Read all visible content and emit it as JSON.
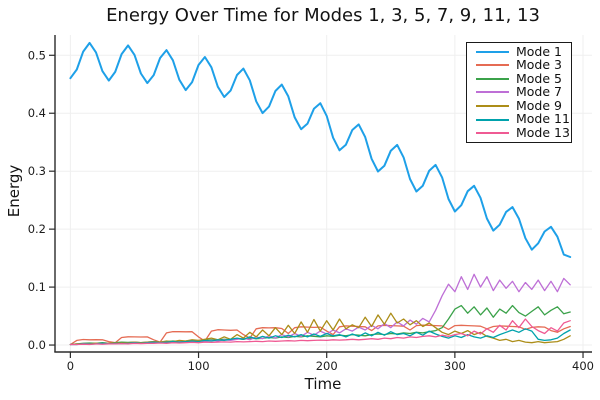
{
  "chart_data": {
    "type": "line",
    "title": "Energy Over Time for Modes 1, 3, 5, 7, 9, 11, 13",
    "xlabel": "Time",
    "ylabel": "Energy",
    "xlim": [
      -12,
      407
    ],
    "ylim": [
      -0.012,
      0.535
    ],
    "x_ticks": [
      0,
      100,
      200,
      300,
      400
    ],
    "x_tick_labels": [
      "0",
      "100",
      "200",
      "300",
      "400"
    ],
    "y_ticks": [
      0.0,
      0.1,
      0.2,
      0.3,
      0.4,
      0.5
    ],
    "y_tick_labels": [
      "0.0",
      "0.1",
      "0.2",
      "0.3",
      "0.4",
      "0.5"
    ],
    "grid": true,
    "legend_position": "top-right",
    "axis_color": "#2b2b2b",
    "grid_color": "#efefef",
    "x": [
      0,
      5,
      10,
      15,
      20,
      25,
      30,
      35,
      40,
      45,
      50,
      55,
      60,
      65,
      70,
      75,
      80,
      85,
      90,
      95,
      100,
      105,
      110,
      115,
      120,
      125,
      130,
      135,
      140,
      145,
      150,
      155,
      160,
      165,
      170,
      175,
      180,
      185,
      190,
      195,
      200,
      205,
      210,
      215,
      220,
      225,
      230,
      235,
      240,
      245,
      250,
      255,
      260,
      265,
      270,
      275,
      280,
      285,
      290,
      295,
      300,
      305,
      310,
      315,
      320,
      325,
      330,
      335,
      340,
      345,
      350,
      355,
      360,
      365,
      370,
      375,
      380,
      385,
      390
    ],
    "series": [
      {
        "name": "Mode 1",
        "color": "#1EA0E8",
        "width": 2,
        "values": [
          0.4605,
          0.4755,
          0.5063,
          0.5214,
          0.5049,
          0.4727,
          0.4563,
          0.4713,
          0.5021,
          0.5171,
          0.5007,
          0.4685,
          0.452,
          0.4658,
          0.4953,
          0.509,
          0.4913,
          0.4578,
          0.44,
          0.4538,
          0.4833,
          0.497,
          0.4793,
          0.4458,
          0.428,
          0.4391,
          0.466,
          0.4771,
          0.4568,
          0.4206,
          0.4003,
          0.4114,
          0.4383,
          0.4494,
          0.429,
          0.3929,
          0.3725,
          0.3822,
          0.4076,
          0.4173,
          0.3954,
          0.3578,
          0.336,
          0.3457,
          0.3711,
          0.3808,
          0.3589,
          0.3213,
          0.2995,
          0.3095,
          0.3353,
          0.3453,
          0.3238,
          0.2865,
          0.265,
          0.275,
          0.3008,
          0.3108,
          0.2893,
          0.252,
          0.2305,
          0.2413,
          0.2655,
          0.2748,
          0.254,
          0.2183,
          0.1975,
          0.2077,
          0.2298,
          0.238,
          0.2182,
          0.1843,
          0.1645,
          0.1755,
          0.196,
          0.204,
          0.187,
          0.156,
          0.152
        ]
      },
      {
        "name": "Mode 3",
        "color": "#E56B53",
        "width": 1.3,
        "values": [
          0.001,
          0.008,
          0.0095,
          0.009,
          0.0092,
          0.009,
          0.006,
          0.004,
          0.013,
          0.0142,
          0.014,
          0.0138,
          0.014,
          0.009,
          0.005,
          0.021,
          0.0232,
          0.023,
          0.0228,
          0.023,
          0.014,
          0.007,
          0.024,
          0.0265,
          0.026,
          0.0255,
          0.026,
          0.018,
          0.012,
          0.028,
          0.03,
          0.0295,
          0.03,
          0.0285,
          0.02,
          0.03,
          0.0315,
          0.031,
          0.0305,
          0.031,
          0.024,
          0.018,
          0.0315,
          0.033,
          0.0325,
          0.032,
          0.0315,
          0.025,
          0.033,
          0.034,
          0.0335,
          0.033,
          0.0325,
          0.026,
          0.0335,
          0.0345,
          0.034,
          0.0335,
          0.033,
          0.027,
          0.0335,
          0.034,
          0.0335,
          0.033,
          0.0325,
          0.028,
          0.032,
          0.033,
          0.0325,
          0.032,
          0.0315,
          0.027,
          0.0305,
          0.0315,
          0.031,
          0.025,
          0.022,
          0.028,
          0.032
        ]
      },
      {
        "name": "Mode 5",
        "color": "#3BA24A",
        "width": 1.3,
        "values": [
          0.001,
          0.002,
          0.003,
          0.0035,
          0.003,
          0.004,
          0.003,
          0.004,
          0.005,
          0.0045,
          0.005,
          0.004,
          0.005,
          0.006,
          0.005,
          0.006,
          0.007,
          0.0065,
          0.007,
          0.008,
          0.0075,
          0.008,
          0.009,
          0.0085,
          0.01,
          0.009,
          0.011,
          0.01,
          0.012,
          0.011,
          0.0115,
          0.013,
          0.012,
          0.014,
          0.013,
          0.015,
          0.014,
          0.016,
          0.015,
          0.014,
          0.016,
          0.015,
          0.017,
          0.016,
          0.018,
          0.017,
          0.016,
          0.018,
          0.019,
          0.018,
          0.02,
          0.019,
          0.021,
          0.02,
          0.022,
          0.021,
          0.023,
          0.025,
          0.03,
          0.045,
          0.062,
          0.068,
          0.055,
          0.066,
          0.052,
          0.064,
          0.048,
          0.062,
          0.055,
          0.068,
          0.056,
          0.05,
          0.058,
          0.066,
          0.052,
          0.06,
          0.066,
          0.054,
          0.057
        ]
      },
      {
        "name": "Mode 7",
        "color": "#BE6FD6",
        "width": 1.3,
        "values": [
          0.001,
          0.001,
          0.002,
          0.002,
          0.0025,
          0.002,
          0.003,
          0.0025,
          0.003,
          0.0035,
          0.003,
          0.004,
          0.0035,
          0.004,
          0.005,
          0.0045,
          0.005,
          0.006,
          0.0055,
          0.006,
          0.007,
          0.0065,
          0.008,
          0.007,
          0.009,
          0.008,
          0.01,
          0.012,
          0.009,
          0.014,
          0.011,
          0.016,
          0.012,
          0.018,
          0.014,
          0.02,
          0.015,
          0.022,
          0.017,
          0.024,
          0.019,
          0.026,
          0.021,
          0.028,
          0.024,
          0.031,
          0.026,
          0.034,
          0.028,
          0.037,
          0.03,
          0.04,
          0.033,
          0.043,
          0.036,
          0.046,
          0.04,
          0.06,
          0.085,
          0.105,
          0.092,
          0.118,
          0.096,
          0.122,
          0.1,
          0.118,
          0.094,
          0.112,
          0.098,
          0.11,
          0.092,
          0.108,
          0.096,
          0.112,
          0.094,
          0.11,
          0.092,
          0.115,
          0.104
        ]
      },
      {
        "name": "Mode 9",
        "color": "#AC8D18",
        "width": 1.3,
        "values": [
          0.001,
          0.002,
          0.0015,
          0.002,
          0.003,
          0.002,
          0.003,
          0.004,
          0.003,
          0.004,
          0.005,
          0.004,
          0.005,
          0.006,
          0.005,
          0.007,
          0.006,
          0.008,
          0.007,
          0.009,
          0.008,
          0.01,
          0.012,
          0.009,
          0.014,
          0.01,
          0.018,
          0.012,
          0.022,
          0.014,
          0.026,
          0.016,
          0.03,
          0.018,
          0.034,
          0.02,
          0.04,
          0.022,
          0.044,
          0.024,
          0.042,
          0.026,
          0.045,
          0.028,
          0.035,
          0.03,
          0.048,
          0.032,
          0.052,
          0.036,
          0.055,
          0.038,
          0.045,
          0.035,
          0.042,
          0.032,
          0.038,
          0.03,
          0.022,
          0.018,
          0.024,
          0.02,
          0.025,
          0.018,
          0.022,
          0.015,
          0.012,
          0.008,
          0.01,
          0.006,
          0.008,
          0.005,
          0.004,
          0.006,
          0.004,
          0.005,
          0.006,
          0.01,
          0.016
        ]
      },
      {
        "name": "Mode 11",
        "color": "#00A2AC",
        "width": 1.3,
        "values": [
          0.001,
          0.001,
          0.002,
          0.0015,
          0.002,
          0.003,
          0.002,
          0.003,
          0.0025,
          0.003,
          0.004,
          0.003,
          0.004,
          0.005,
          0.004,
          0.005,
          0.006,
          0.005,
          0.006,
          0.007,
          0.006,
          0.008,
          0.007,
          0.009,
          0.008,
          0.01,
          0.012,
          0.01,
          0.014,
          0.011,
          0.015,
          0.012,
          0.016,
          0.013,
          0.017,
          0.014,
          0.018,
          0.014,
          0.019,
          0.015,
          0.02,
          0.016,
          0.018,
          0.014,
          0.019,
          0.015,
          0.021,
          0.016,
          0.022,
          0.017,
          0.023,
          0.018,
          0.02,
          0.016,
          0.022,
          0.017,
          0.024,
          0.019,
          0.015,
          0.012,
          0.016,
          0.013,
          0.018,
          0.014,
          0.012,
          0.016,
          0.013,
          0.018,
          0.022,
          0.026,
          0.022,
          0.028,
          0.024,
          0.01,
          0.008,
          0.009,
          0.012,
          0.02,
          0.026
        ]
      },
      {
        "name": "Mode 13",
        "color": "#EF5A93",
        "width": 1.3,
        "values": [
          0.001,
          0.001,
          0.0015,
          0.001,
          0.002,
          0.0015,
          0.002,
          0.002,
          0.0025,
          0.002,
          0.003,
          0.0025,
          0.003,
          0.003,
          0.0035,
          0.003,
          0.004,
          0.0035,
          0.004,
          0.0045,
          0.004,
          0.005,
          0.0045,
          0.005,
          0.0055,
          0.005,
          0.006,
          0.0055,
          0.006,
          0.0065,
          0.006,
          0.007,
          0.0065,
          0.007,
          0.0075,
          0.007,
          0.008,
          0.0075,
          0.008,
          0.0085,
          0.008,
          0.009,
          0.0085,
          0.009,
          0.01,
          0.009,
          0.01,
          0.011,
          0.01,
          0.012,
          0.011,
          0.013,
          0.012,
          0.014,
          0.013,
          0.015,
          0.016,
          0.014,
          0.017,
          0.015,
          0.018,
          0.02,
          0.016,
          0.024,
          0.019,
          0.028,
          0.022,
          0.034,
          0.026,
          0.042,
          0.03,
          0.045,
          0.032,
          0.025,
          0.02,
          0.03,
          0.024,
          0.038,
          0.042
        ]
      }
    ]
  }
}
